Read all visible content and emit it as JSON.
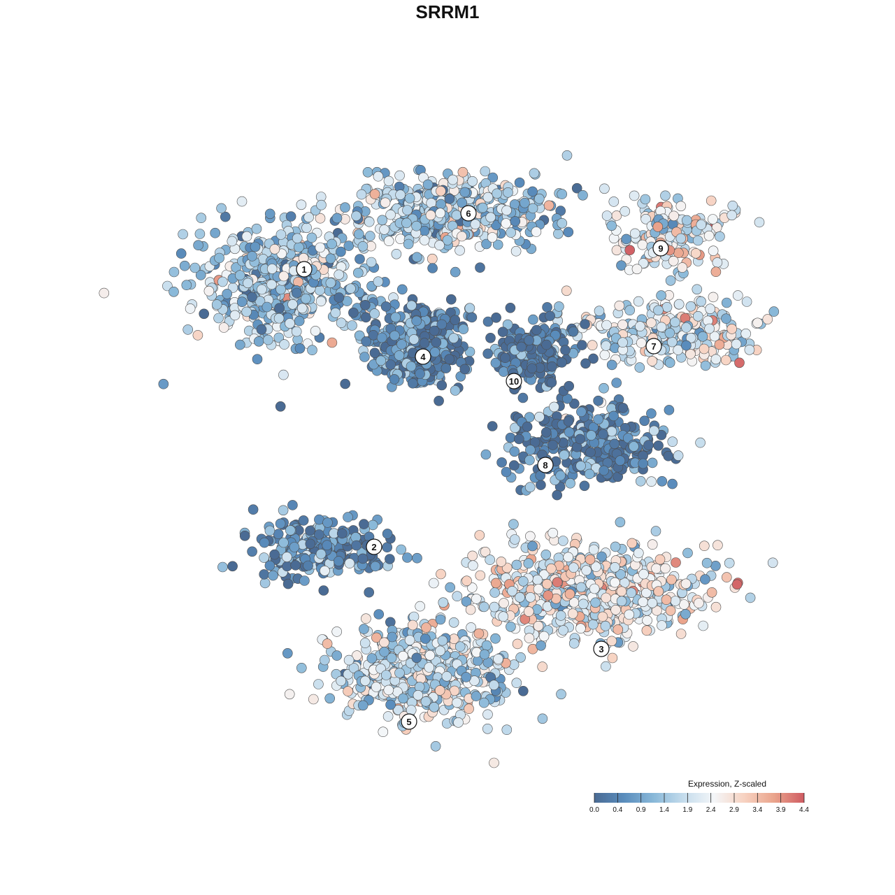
{
  "title": "SRRM1",
  "chart_data": {
    "type": "scatter",
    "title": "SRRM1",
    "xlabel": "",
    "ylabel": "",
    "grid": false,
    "legend_position": "bottom-right",
    "colorbar": {
      "title": "Expression, Z-scaled",
      "min": 0.0,
      "max": 4.4,
      "ticks": [
        "0.0",
        "0.4",
        "0.9",
        "1.4",
        "1.9",
        "2.4",
        "2.9",
        "3.4",
        "3.9",
        "4.4"
      ],
      "colors": [
        "#4a6b94",
        "#5a8dbd",
        "#8ab9d9",
        "#c6dded",
        "#f4f6f8",
        "#f7d2c1",
        "#eaa48c",
        "#cf5b62"
      ]
    },
    "clusters": [
      {
        "label": "1",
        "x": -2.05,
        "y": 2.25,
        "mean_expression": 1.5
      },
      {
        "label": "2",
        "x": -1.05,
        "y": -1.72,
        "mean_expression": 0.6
      },
      {
        "label": "3",
        "x": 2.2,
        "y": -3.18,
        "mean_expression": 2.4
      },
      {
        "label": "4",
        "x": -0.35,
        "y": 1.0,
        "mean_expression": 0.4
      },
      {
        "label": "5",
        "x": -0.55,
        "y": -4.22,
        "mean_expression": 1.9
      },
      {
        "label": "6",
        "x": 0.3,
        "y": 3.05,
        "mean_expression": 1.6
      },
      {
        "label": "7",
        "x": 2.95,
        "y": 1.15,
        "mean_expression": 2.2
      },
      {
        "label": "8",
        "x": 1.4,
        "y": -0.55,
        "mean_expression": 0.4
      },
      {
        "label": "9",
        "x": 3.05,
        "y": 2.55,
        "mean_expression": 2.3
      },
      {
        "label": "10",
        "x": 0.95,
        "y": 0.65,
        "mean_expression": 0.3
      }
    ]
  }
}
